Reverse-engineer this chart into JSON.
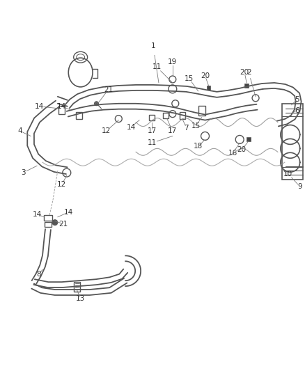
{
  "background_color": "#ffffff",
  "line_color": "#555555",
  "line_width": 1.5,
  "font_size": 7.5,
  "annotation_color": "#333333",
  "fig_width": 4.38,
  "fig_height": 5.33,
  "dpi": 100
}
